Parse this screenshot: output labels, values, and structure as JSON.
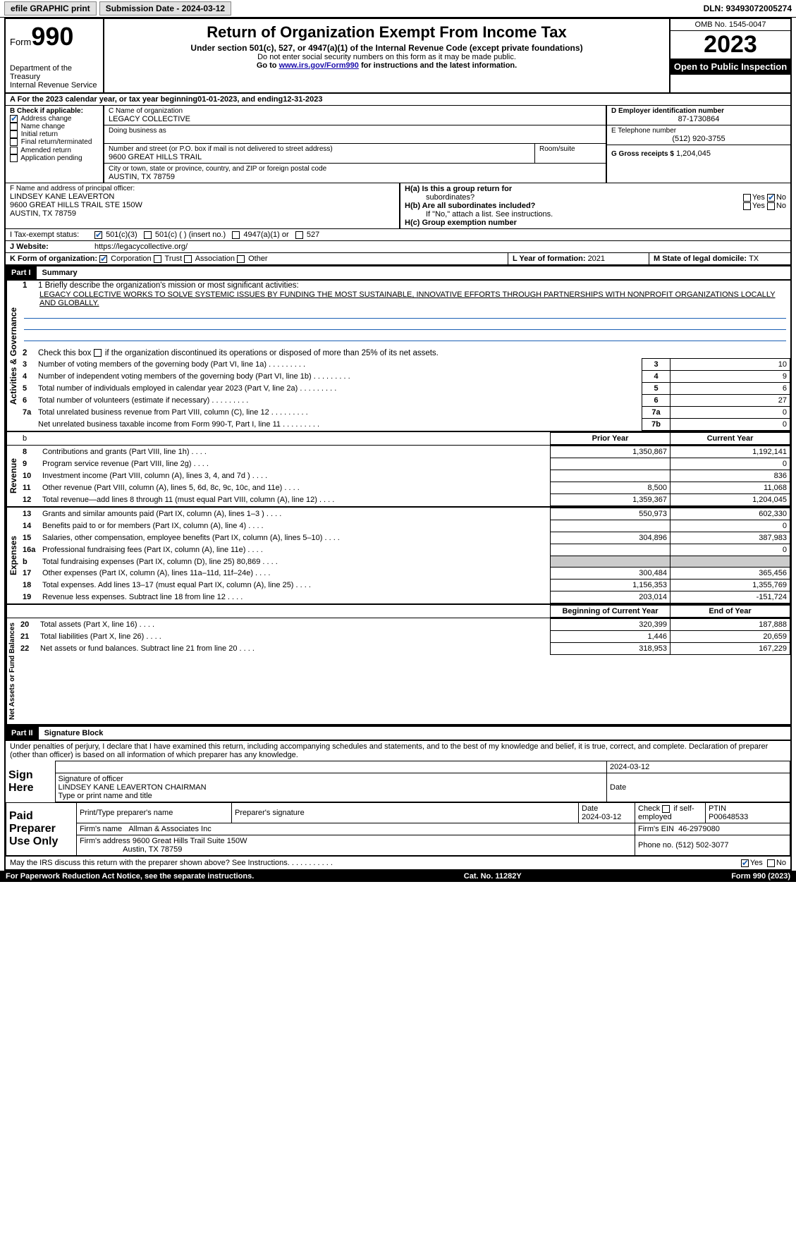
{
  "topbar": {
    "efile": "efile GRAPHIC print",
    "submission": "Submission Date - 2024-03-12",
    "dln": "DLN: 93493072005274"
  },
  "header": {
    "form_label": "Form",
    "form_num": "990",
    "dept": "Department of the Treasury",
    "irs": "Internal Revenue Service",
    "title": "Return of Organization Exempt From Income Tax",
    "subtitle": "Under section 501(c), 527, or 4947(a)(1) of the Internal Revenue Code (except private foundations)",
    "note1": "Do not enter social security numbers on this form as it may be made public.",
    "note2_pre": "Go to ",
    "note2_link": "www.irs.gov/Form990",
    "note2_post": " for instructions and the latest information.",
    "omb": "OMB No. 1545-0047",
    "year": "2023",
    "inspection": "Open to Public Inspection"
  },
  "period": {
    "label_a": "A For the 2023 calendar year, or tax year beginning ",
    "begin": "01-01-2023",
    "mid": " , and ending ",
    "end": "12-31-2023"
  },
  "boxB": {
    "label": "B Check if applicable:",
    "items": [
      {
        "label": "Address change",
        "checked": true
      },
      {
        "label": "Name change",
        "checked": false
      },
      {
        "label": "Initial return",
        "checked": false
      },
      {
        "label": "Final return/terminated",
        "checked": false
      },
      {
        "label": "Amended return",
        "checked": false
      },
      {
        "label": "Application pending",
        "checked": false
      }
    ]
  },
  "boxC": {
    "name_label": "C Name of organization",
    "name": "LEGACY COLLECTIVE",
    "dba_label": "Doing business as",
    "addr_label": "Number and street (or P.O. box if mail is not delivered to street address)",
    "room_label": "Room/suite",
    "addr": "9600 GREAT HILLS TRAIL",
    "city_label": "City or town, state or province, country, and ZIP or foreign postal code",
    "city": "AUSTIN, TX  78759"
  },
  "boxD": {
    "label": "D Employer identification number",
    "value": "87-1730864"
  },
  "boxE": {
    "label": "E Telephone number",
    "value": "(512) 920-3755"
  },
  "boxG": {
    "label": "G Gross receipts $",
    "value": "1,204,045"
  },
  "boxF": {
    "label": "F Name and address of principal officer:",
    "name": "LINDSEY KANE LEAVERTON",
    "addr1": "9600 GREAT HILLS TRAIL STE 150W",
    "addr2": "AUSTIN, TX  78759"
  },
  "boxH": {
    "a_label": "H(a)  Is this a group return for",
    "a_sub": "subordinates?",
    "a_yes": "Yes",
    "a_no": "No",
    "a_checked": "no",
    "b_label": "H(b)  Are all subordinates included?",
    "b_yes": "Yes",
    "b_no": "No",
    "b_note": "If \"No,\" attach a list. See instructions.",
    "c_label": "H(c)  Group exemption number"
  },
  "boxI": {
    "label": "I  Tax-exempt status:",
    "opt1": "501(c)(3)",
    "opt1_checked": true,
    "opt2": "501(c) (  ) (insert no.)",
    "opt3": "4947(a)(1) or",
    "opt4": "527"
  },
  "boxJ": {
    "label": "J  Website:",
    "value": "https://legacycollective.org/"
  },
  "boxK": {
    "label": "K Form of organization:",
    "opts": [
      "Corporation",
      "Trust",
      "Association",
      "Other"
    ],
    "checked": 0
  },
  "boxL": {
    "label": "L Year of formation: ",
    "value": "2021"
  },
  "boxM": {
    "label": "M State of legal domicile: ",
    "value": "TX"
  },
  "part1": {
    "num": "Part I",
    "title": "Summary"
  },
  "mission": {
    "label": "1  Briefly describe the organization's mission or most significant activities:",
    "text": "LEGACY COLLECTIVE WORKS TO SOLVE SYSTEMIC ISSUES BY FUNDING THE MOST SUSTAINABLE, INNOVATIVE EFFORTS THROUGH PARTNERSHIPS WITH NONPROFIT ORGANIZATIONS LOCALLY AND GLOBALLY."
  },
  "gov": {
    "label": "Activities & Governance",
    "line2": "Check this box   if the organization discontinued its operations or disposed of more than 25% of its net assets.",
    "rows": [
      {
        "n": "3",
        "t": "Number of voting members of the governing body (Part VI, line 1a)",
        "box": "3",
        "v": "10"
      },
      {
        "n": "4",
        "t": "Number of independent voting members of the governing body (Part VI, line 1b)",
        "box": "4",
        "v": "9"
      },
      {
        "n": "5",
        "t": "Total number of individuals employed in calendar year 2023 (Part V, line 2a)",
        "box": "5",
        "v": "6"
      },
      {
        "n": "6",
        "t": "Total number of volunteers (estimate if necessary)",
        "box": "6",
        "v": "27"
      },
      {
        "n": "7a",
        "t": "Total unrelated business revenue from Part VIII, column (C), line 12",
        "box": "7a",
        "v": "0"
      },
      {
        "n": "",
        "t": "Net unrelated business taxable income from Form 990-T, Part I, line 11",
        "box": "7b",
        "v": "0"
      }
    ]
  },
  "revexp": {
    "hdr_b": "b",
    "hdr_prior": "Prior Year",
    "hdr_curr": "Current Year",
    "rev_label": "Revenue",
    "rev": [
      {
        "n": "8",
        "t": "Contributions and grants (Part VIII, line 1h)",
        "p": "1,350,867",
        "c": "1,192,141"
      },
      {
        "n": "9",
        "t": "Program service revenue (Part VIII, line 2g)",
        "p": "",
        "c": "0"
      },
      {
        "n": "10",
        "t": "Investment income (Part VIII, column (A), lines 3, 4, and 7d )",
        "p": "",
        "c": "836"
      },
      {
        "n": "11",
        "t": "Other revenue (Part VIII, column (A), lines 5, 6d, 8c, 9c, 10c, and 11e)",
        "p": "8,500",
        "c": "11,068"
      },
      {
        "n": "12",
        "t": "Total revenue—add lines 8 through 11 (must equal Part VIII, column (A), line 12)",
        "p": "1,359,367",
        "c": "1,204,045"
      }
    ],
    "exp_label": "Expenses",
    "exp": [
      {
        "n": "13",
        "t": "Grants and similar amounts paid (Part IX, column (A), lines 1–3 )",
        "p": "550,973",
        "c": "602,330"
      },
      {
        "n": "14",
        "t": "Benefits paid to or for members (Part IX, column (A), line 4)",
        "p": "",
        "c": "0"
      },
      {
        "n": "15",
        "t": "Salaries, other compensation, employee benefits (Part IX, column (A), lines 5–10)",
        "p": "304,896",
        "c": "387,983"
      },
      {
        "n": "16a",
        "t": "Professional fundraising fees (Part IX, column (A), line 11e)",
        "p": "",
        "c": "0"
      },
      {
        "n": "b",
        "t": "Total fundraising expenses (Part IX, column (D), line 25) 80,869",
        "p": "grey",
        "c": "grey"
      },
      {
        "n": "17",
        "t": "Other expenses (Part IX, column (A), lines 11a–11d, 11f–24e)",
        "p": "300,484",
        "c": "365,456"
      },
      {
        "n": "18",
        "t": "Total expenses. Add lines 13–17 (must equal Part IX, column (A), line 25)",
        "p": "1,156,353",
        "c": "1,355,769"
      },
      {
        "n": "19",
        "t": "Revenue less expenses. Subtract line 18 from line 12",
        "p": "203,014",
        "c": "-151,724"
      }
    ],
    "net_label": "Net Assets or Fund Balances",
    "net_hdr_p": "Beginning of Current Year",
    "net_hdr_c": "End of Year",
    "net": [
      {
        "n": "20",
        "t": "Total assets (Part X, line 16)",
        "p": "320,399",
        "c": "187,888"
      },
      {
        "n": "21",
        "t": "Total liabilities (Part X, line 26)",
        "p": "1,446",
        "c": "20,659"
      },
      {
        "n": "22",
        "t": "Net assets or fund balances. Subtract line 21 from line 20",
        "p": "318,953",
        "c": "167,229"
      }
    ]
  },
  "part2": {
    "num": "Part II",
    "title": "Signature Block"
  },
  "perjury": "Under penalties of perjury, I declare that I have examined this return, including accompanying schedules and statements, and to the best of my knowledge and belief, it is true, correct, and complete. Declaration of preparer (other than officer) is based on all information of which preparer has any knowledge.",
  "sign": {
    "here": "Sign Here",
    "sig_label": "Signature of officer",
    "date": "2024-03-12",
    "date_label": "Date",
    "officer": "LINDSEY KANE LEAVERTON  CHAIRMAN",
    "type_label": "Type or print name and title"
  },
  "paid": {
    "label": "Paid Preparer Use Only",
    "print_label": "Print/Type preparer's name",
    "sig_label": "Preparer's signature",
    "date_label": "Date",
    "date": "2024-03-12",
    "check_label": "Check",
    "self_label": "if self-employed",
    "ptin_label": "PTIN",
    "ptin": "P00648533",
    "firm_name_label": "Firm's name",
    "firm_name": "Allman & Associates Inc",
    "firm_ein_label": "Firm's EIN",
    "firm_ein": "46-2979080",
    "firm_addr_label": "Firm's address",
    "firm_addr1": "9600 Great Hills Trail Suite 150W",
    "firm_addr2": "Austin, TX  78759",
    "phone_label": "Phone no.",
    "phone": "(512) 502-3077"
  },
  "discuss": {
    "q": "May the IRS discuss this return with the preparer shown above? See Instructions.",
    "yes": "Yes",
    "no": "No",
    "checked": "yes"
  },
  "footer": {
    "pra": "For Paperwork Reduction Act Notice, see the separate instructions.",
    "cat": "Cat. No. 11282Y",
    "form": "Form 990 (2023)"
  }
}
